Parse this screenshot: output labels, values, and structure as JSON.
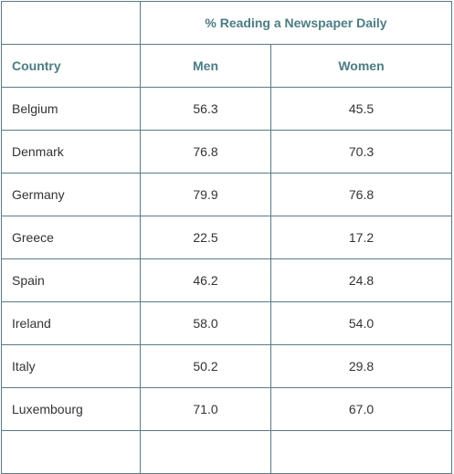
{
  "table": {
    "group_header": "% Reading a Newspaper Daily",
    "columns": [
      "Country",
      "Men",
      "Women"
    ],
    "rows": [
      {
        "country": "Belgium",
        "men": "56.3",
        "women": "45.5"
      },
      {
        "country": "Denmark",
        "men": "76.8",
        "women": "70.3"
      },
      {
        "country": "Germany",
        "men": "79.9",
        "women": "76.8"
      },
      {
        "country": "Greece",
        "men": "22.5",
        "women": "17.2"
      },
      {
        "country": "Spain",
        "men": "46.2",
        "women": "24.8"
      },
      {
        "country": "Ireland",
        "men": "58.0",
        "women": "54.0"
      },
      {
        "country": "Italy",
        "men": "50.2",
        "women": "29.8"
      },
      {
        "country": "Luxembourg",
        "men": "71.0",
        "women": "67.0"
      }
    ],
    "colors": {
      "border": "#5b7a86",
      "header_text": "#4a7d84",
      "body_text": "#333333"
    }
  }
}
